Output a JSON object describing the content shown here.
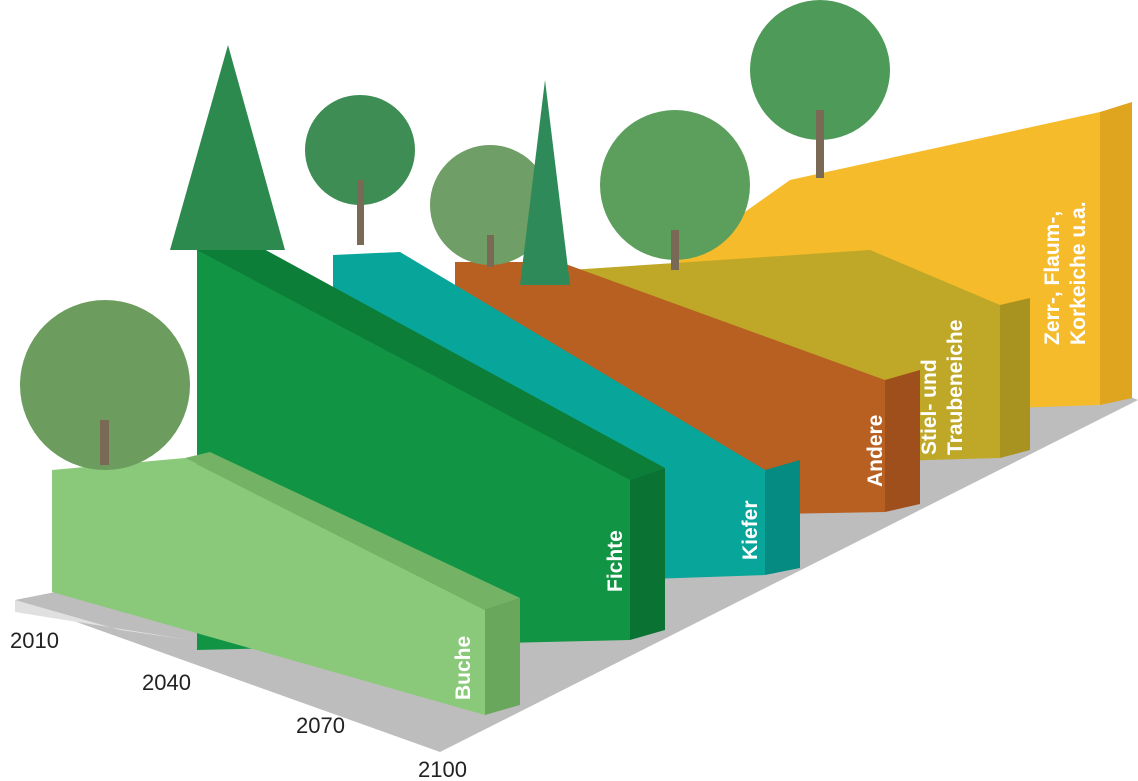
{
  "years": [
    "2010",
    "2040",
    "2070",
    "2100"
  ],
  "species": [
    {
      "lines": [
        "Buche"
      ]
    },
    {
      "lines": [
        "Fichte"
      ]
    },
    {
      "lines": [
        "Kiefer"
      ]
    },
    {
      "lines": [
        "Andere"
      ]
    },
    {
      "lines": [
        "Stiel- und",
        "Traubeneiche"
      ]
    },
    {
      "lines": [
        "Zerr-, Flaum-,",
        "Korkeiche u.a."
      ]
    }
  ]
}
